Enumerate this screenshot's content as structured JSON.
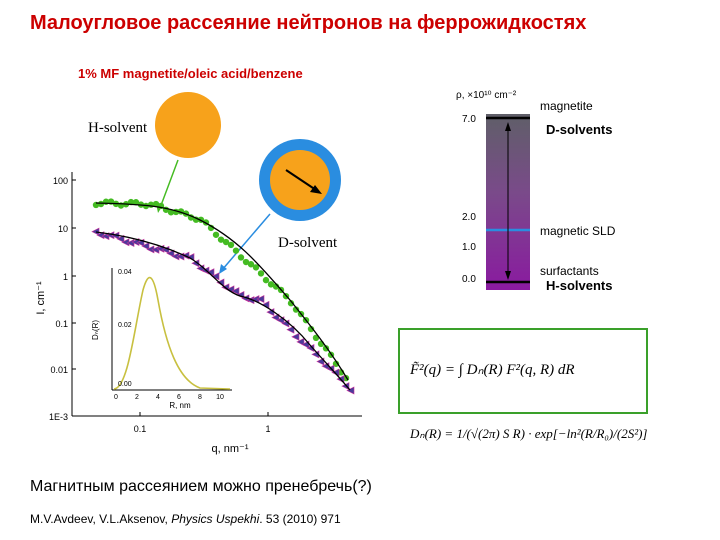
{
  "title": "Малоугловое рассеяние нейтронов на феррожидкостях",
  "subtitle": "1% MF magnetite/oleic acid/benzene",
  "labels": {
    "h_solvent_left": "H-solvent",
    "d_solvent_left": "D-solvent"
  },
  "sld_scale": {
    "header": "ρ, ×10¹⁰ cm⁻²",
    "ticks": [
      "7.0",
      "2.0",
      "1.0",
      "0.0"
    ],
    "annotations": {
      "magnetite": "magnetite",
      "d_solvents": "D-solvents",
      "magnetic_sld": "magnetic SLD",
      "surfactants": "surfactants",
      "h_solvents": "H-solvents"
    }
  },
  "main_plot": {
    "x_label": "q, nm⁻¹",
    "y_label": "I, cm⁻¹",
    "x_ticks": [
      "0.1",
      "1"
    ],
    "y_ticks": [
      "100",
      "10",
      "1",
      "0.1",
      "0.01",
      "1E-3"
    ]
  },
  "inset_plot": {
    "x_label": "R, nm",
    "y_label": "Dₙ(R)",
    "x_ticks": [
      "0",
      "2",
      "4",
      "6",
      "8",
      "10"
    ],
    "y_ticks": [
      "0.04",
      "0.02",
      "0.00"
    ]
  },
  "formulas": {
    "f2": "F̃²(q) = ∫ Dₙ(R) F²(q, R) dR",
    "dn": "Dₙ(R) = 1/(√(2π) S R) · exp[−ln²(R/R₀)/(2S²)]"
  },
  "bottom_text": "Магнитным рассеянием можно пренебречь(?)",
  "reference": {
    "authors": "M.V.Avdeev, V.L.Aksenov, ",
    "journal": "Physics Uspekhi",
    "rest": ". 53 (2010) 971"
  },
  "colors": {
    "title": "#cc0000",
    "h_solvent_particle": "#f7a21b",
    "d_solvent_shell": "#2a8de0",
    "h_solvent_data": "#44bb22",
    "d_solvent_data": "#4a3a9a",
    "fit_curve": "#000000",
    "inset_curve": "#c8c040",
    "formula_border": "#3aa02a"
  }
}
